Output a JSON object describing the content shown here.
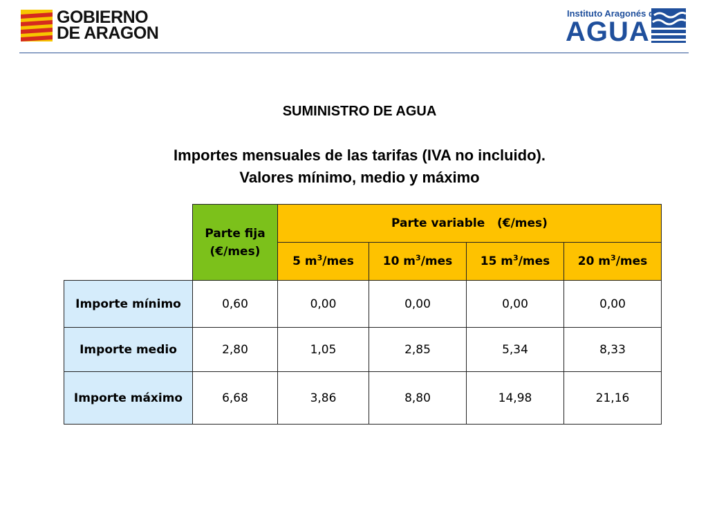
{
  "logos": {
    "gobierno_line1": "GOBIERNO",
    "gobierno_line2": "DE ARAGON",
    "instituto_line1": "Instituto Aragonés del",
    "instituto_line2": "AGUA"
  },
  "title": "SUMINISTRO DE AGUA",
  "subtitle_line1": "Importes mensuales de las tarifas (IVA no incluido).",
  "subtitle_line2": "Valores mínimo, medio y máximo",
  "table": {
    "fixed_header": "Parte fija (€/mes)",
    "variable_header": "Parte variable   (€/mes)",
    "volume_columns": [
      {
        "value": "5 m",
        "exp": "3",
        "unit": "/mes"
      },
      {
        "value": "10 m",
        "exp": "3",
        "unit": "/mes"
      },
      {
        "value": "15 m",
        "exp": "3",
        "unit": "/mes"
      },
      {
        "value": "20 m",
        "exp": "3",
        "unit": "/mes"
      }
    ],
    "rows": [
      {
        "label": "Importe mínimo",
        "values": [
          "0,60",
          "0,00",
          "0,00",
          "0,00",
          "0,00"
        ]
      },
      {
        "label": "Importe medio",
        "values": [
          "2,80",
          "1,05",
          "2,85",
          "5,34",
          "8,33"
        ]
      },
      {
        "label": "Importe máximo",
        "values": [
          "6,68",
          "3,86",
          "8,80",
          "14,98",
          "21,16"
        ]
      }
    ]
  },
  "colors": {
    "fixed_header_bg": "#7cc11b",
    "variable_header_bg": "#fec200",
    "row_header_bg": "#d5ecfb",
    "brand_blue": "#1f4f9c"
  }
}
